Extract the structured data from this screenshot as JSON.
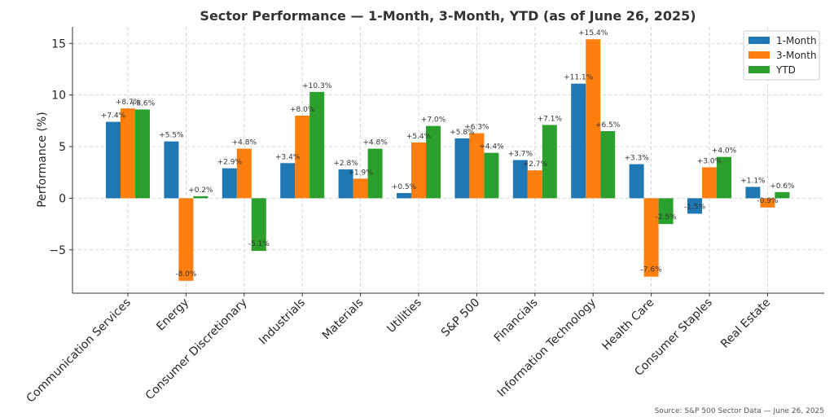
{
  "chart_data": {
    "type": "bar",
    "title": "Sector Performance — 1-Month, 3-Month, YTD (as of June 26, 2025)",
    "xlabel": "",
    "ylabel": "Performance (%)",
    "ylim": [
      -9.2,
      16.6
    ],
    "yticks": [
      -5,
      0,
      5,
      10,
      15
    ],
    "ytick_labels": [
      "−5",
      "0",
      "5",
      "10",
      "15"
    ],
    "grid": true,
    "legend_position": "top-right",
    "categories": [
      "Communication Services",
      "Energy",
      "Consumer Discretionary",
      "Industrials",
      "Materials",
      "Utilities",
      "S&P 500",
      "Financials",
      "Information Technology",
      "Health Care",
      "Consumer Staples",
      "Real Estate"
    ],
    "series": [
      {
        "name": "1-Month",
        "color": "#1f77b4",
        "values": [
          7.4,
          5.5,
          2.9,
          3.4,
          2.8,
          0.5,
          5.8,
          3.7,
          11.1,
          3.3,
          -1.5,
          1.1
        ],
        "labels": [
          "+7.4%",
          "+5.5%",
          "+2.9%",
          "+3.4%",
          "+2.8%",
          "+0.5%",
          "+5.8%",
          "+3.7%",
          "+11.1%",
          "+3.3%",
          "-1.5%",
          "+1.1%"
        ]
      },
      {
        "name": "3-Month",
        "color": "#ff7f0e",
        "values": [
          8.7,
          -8.0,
          4.8,
          8.0,
          1.9,
          5.4,
          6.3,
          2.7,
          15.4,
          -7.6,
          3.0,
          -0.9
        ],
        "labels": [
          "+8.7%",
          "-8.0%",
          "+4.8%",
          "+8.0%",
          "+1.9%",
          "+5.4%",
          "+6.3%",
          "+2.7%",
          "+15.4%",
          "-7.6%",
          "+3.0%",
          "-0.9%"
        ]
      },
      {
        "name": "YTD",
        "color": "#2ca02c",
        "values": [
          8.6,
          0.2,
          -5.1,
          10.3,
          4.8,
          7.0,
          4.4,
          7.1,
          6.5,
          -2.5,
          4.0,
          0.6
        ],
        "labels": [
          "+8.6%",
          "+0.2%",
          "-5.1%",
          "+10.3%",
          "+4.8%",
          "+7.0%",
          "+4.4%",
          "+7.1%",
          "+6.5%",
          "-2.5%",
          "+4.0%",
          "+0.6%"
        ]
      }
    ],
    "source": "Source: S&P 500 Sector Data — June 26, 2025"
  }
}
